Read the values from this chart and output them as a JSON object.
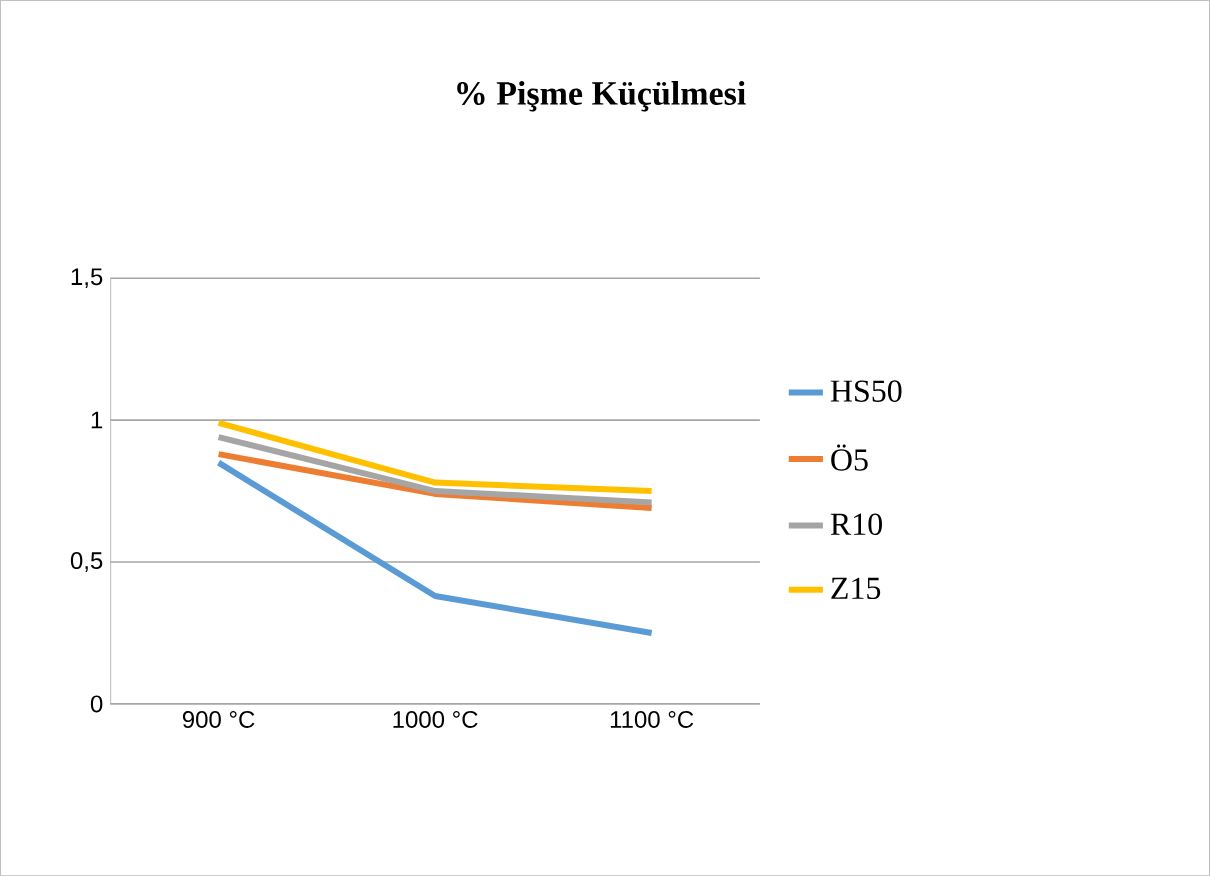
{
  "chart_data": {
    "type": "line",
    "title": "% Pişme Küçülmesi",
    "categories": [
      "900 °C",
      "1000 °C",
      "1100 °C"
    ],
    "series": [
      {
        "name": "HS50",
        "color": "#5b9bd5",
        "values": [
          0.85,
          0.38,
          0.25
        ]
      },
      {
        "name": "Ö5",
        "color": "#ed7d31",
        "values": [
          0.88,
          0.74,
          0.69
        ]
      },
      {
        "name": "R10",
        "color": "#a5a5a5",
        "values": [
          0.94,
          0.75,
          0.71
        ]
      },
      {
        "name": "Z15",
        "color": "#ffc000",
        "values": [
          0.99,
          0.78,
          0.75
        ]
      }
    ],
    "ylim": [
      0,
      1.5
    ],
    "yticks": [
      {
        "value": 0,
        "label": "0"
      },
      {
        "value": 0.5,
        "label": "0,5"
      },
      {
        "value": 1,
        "label": "1"
      },
      {
        "value": 1.5,
        "label": "1,5"
      }
    ],
    "grid": "y",
    "legend": "right",
    "marker": "none",
    "line_style": "solid"
  }
}
